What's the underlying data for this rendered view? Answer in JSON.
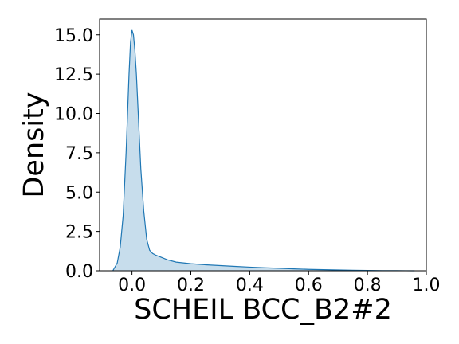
{
  "chart_data": {
    "type": "area",
    "title": "",
    "xlabel": "SCHEIL BCC_B2#2",
    "ylabel": "Density",
    "xlim": [
      -0.11,
      1.0
    ],
    "ylim": [
      0,
      16.0
    ],
    "x_ticks": [
      0.0,
      0.2,
      0.4,
      0.6,
      0.8,
      1.0
    ],
    "x_tick_labels": [
      "0.0",
      "0.2",
      "0.4",
      "0.6",
      "0.8",
      "1.0"
    ],
    "y_ticks": [
      0.0,
      2.5,
      5.0,
      7.5,
      10.0,
      12.5,
      15.0
    ],
    "y_tick_labels": [
      "0.0",
      "2.5",
      "5.0",
      "7.5",
      "10.0",
      "12.5",
      "15.0"
    ],
    "grid": false,
    "legend": "none",
    "series": [
      {
        "line_color": "#1f77b4",
        "fill_color": "#1f77b4",
        "fill_opacity": 0.25,
        "x": [
          -0.065,
          -0.05,
          -0.04,
          -0.03,
          -0.02,
          -0.01,
          -0.005,
          0.0,
          0.005,
          0.01,
          0.015,
          0.02,
          0.03,
          0.04,
          0.05,
          0.06,
          0.07,
          0.08,
          0.1,
          0.12,
          0.15,
          0.2,
          0.25,
          0.3,
          0.35,
          0.4,
          0.45,
          0.5,
          0.55,
          0.6,
          0.65,
          0.7,
          0.75,
          0.8,
          0.85,
          0.9,
          0.93,
          0.96
        ],
        "y": [
          0.0,
          0.5,
          1.5,
          3.5,
          7.5,
          12.5,
          14.5,
          15.3,
          15.0,
          14.0,
          12.5,
          10.5,
          6.5,
          3.8,
          2.0,
          1.3,
          1.1,
          1.0,
          0.85,
          0.7,
          0.55,
          0.45,
          0.38,
          0.33,
          0.28,
          0.23,
          0.19,
          0.16,
          0.12,
          0.09,
          0.07,
          0.05,
          0.035,
          0.02,
          0.01,
          0.005,
          0.002,
          0.0
        ]
      }
    ]
  }
}
